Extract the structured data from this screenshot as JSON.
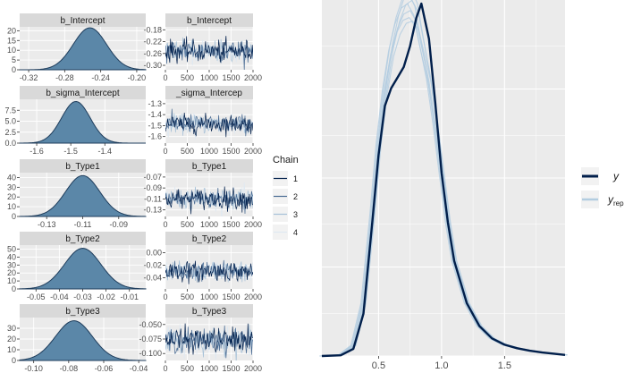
{
  "colors": {
    "panel": "#ebebeb",
    "strip": "#d9d9d9",
    "grid": "#ffffff",
    "density_fill": "#5b87a8",
    "density_line": "#1f3d5c",
    "y_line": "#011f4b",
    "yrep_line": "#b3cde0",
    "tick_text": "#4d4d4d"
  },
  "chart_data": [
    {
      "type": "area",
      "title": "b_Intercept",
      "xlim": [
        -0.33,
        -0.19
      ],
      "ylim": [
        0,
        22
      ],
      "xticks": [
        -0.32,
        -0.28,
        -0.24,
        -0.2
      ],
      "xtick_labels": [
        "-0.32",
        "-0.28",
        "-0.24",
        "-0.20"
      ],
      "yticks": [
        0,
        5,
        10,
        15,
        20
      ],
      "ytick_labels": [
        "0",
        "5",
        "10",
        "15",
        "20"
      ],
      "density": {
        "mean": -0.252,
        "sd": 0.0185,
        "peak": 21.5
      }
    },
    {
      "type": "area",
      "title": "b_sigma_Intercept",
      "xlim": [
        -1.65,
        -1.28
      ],
      "ylim": [
        0,
        10
      ],
      "xticks": [
        -1.6,
        -1.5,
        -1.4
      ],
      "xtick_labels": [
        "-1.6",
        "-1.5",
        "-1.4"
      ],
      "yticks": [
        0,
        2.5,
        5,
        7.5
      ],
      "ytick_labels": [
        "0.0",
        "2.5",
        "5.0",
        "7.5"
      ],
      "density": {
        "mean": -1.485,
        "sd": 0.042,
        "peak": 9.5
      }
    },
    {
      "type": "area",
      "title": "b_Type1",
      "xlim": [
        -0.145,
        -0.075
      ],
      "ylim": [
        0,
        45
      ],
      "xticks": [
        -0.13,
        -0.11,
        -0.09
      ],
      "xtick_labels": [
        "-0.13",
        "-0.11",
        "-0.09"
      ],
      "yticks": [
        0,
        10,
        20,
        30,
        40
      ],
      "ytick_labels": [
        "0",
        "10",
        "20",
        "30",
        "40"
      ],
      "density": {
        "mean": -0.11,
        "sd": 0.0095,
        "peak": 42
      }
    },
    {
      "type": "area",
      "title": "b_Type2",
      "xlim": [
        -0.057,
        -0.003
      ],
      "ylim": [
        0,
        55
      ],
      "xticks": [
        -0.05,
        -0.04,
        -0.03,
        -0.02,
        -0.01
      ],
      "xtick_labels": [
        "-0.05",
        "-0.04",
        "-0.03",
        "-0.02",
        "-0.01"
      ],
      "yticks": [
        0,
        10,
        20,
        30,
        40,
        50
      ],
      "ytick_labels": [
        "0",
        "10",
        "20",
        "30",
        "40",
        "50"
      ],
      "density": {
        "mean": -0.03,
        "sd": 0.0078,
        "peak": 51
      }
    },
    {
      "type": "area",
      "title": "b_Type3",
      "xlim": [
        -0.108,
        -0.036
      ],
      "ylim": [
        0,
        40
      ],
      "xticks": [
        -0.1,
        -0.08,
        -0.06,
        -0.04
      ],
      "xtick_labels": [
        "-0.10",
        "-0.08",
        "-0.06",
        "-0.04"
      ],
      "yticks": [
        0,
        10,
        20,
        30
      ],
      "ytick_labels": [
        "0",
        "10",
        "20",
        "30"
      ],
      "density": {
        "mean": -0.077,
        "sd": 0.0105,
        "peak": 37
      }
    },
    {
      "type": "line",
      "title": "b_Intercept",
      "xlim": [
        0,
        2000
      ],
      "ylim": [
        -0.315,
        -0.17
      ],
      "xticks": [
        0,
        500,
        1000,
        1500,
        2000
      ],
      "xtick_labels": [
        "0",
        "500",
        "1000",
        "1500",
        "2000"
      ],
      "yticks": [
        -0.18,
        -0.22,
        -0.26,
        -0.3
      ],
      "ytick_labels": [
        "-0.18",
        "-0.22",
        "-0.26",
        "-0.30"
      ],
      "trace": {
        "mean": -0.252,
        "sd": 0.0185
      }
    },
    {
      "type": "line",
      "title": "_sigma_Intercep",
      "xlim": [
        0,
        2000
      ],
      "ylim": [
        -1.66,
        -1.26
      ],
      "xticks": [
        0,
        500,
        1000,
        1500,
        2000
      ],
      "xtick_labels": [
        "0",
        "500",
        "1000",
        "1500",
        "2000"
      ],
      "yticks": [
        -1.3,
        -1.4,
        -1.5,
        -1.6
      ],
      "ytick_labels": [
        "-1.3",
        "-1.4",
        "-1.5",
        "-1.6"
      ],
      "trace": {
        "mean": -1.485,
        "sd": 0.042
      }
    },
    {
      "type": "line",
      "title": "b_Type1",
      "xlim": [
        0,
        2000
      ],
      "ylim": [
        -0.142,
        -0.062
      ],
      "xticks": [
        0,
        500,
        1000,
        1500,
        2000
      ],
      "xtick_labels": [
        "0",
        "500",
        "1000",
        "1500",
        "2000"
      ],
      "yticks": [
        -0.07,
        -0.09,
        -0.11,
        -0.13
      ],
      "ytick_labels": [
        "-0.07",
        "-0.09",
        "-0.11",
        "-0.13"
      ],
      "trace": {
        "mean": -0.11,
        "sd": 0.0095
      }
    },
    {
      "type": "line",
      "title": "b_Type2",
      "xlim": [
        0,
        2000
      ],
      "ylim": [
        -0.058,
        0.012
      ],
      "xticks": [
        0,
        500,
        1000,
        1500,
        2000
      ],
      "xtick_labels": [
        "0",
        "500",
        "1000",
        "1500",
        "2000"
      ],
      "yticks": [
        0,
        -0.02,
        -0.04
      ],
      "ytick_labels": [
        "0.00",
        "-0.02",
        "-0.04"
      ],
      "trace": {
        "mean": -0.03,
        "sd": 0.0078
      }
    },
    {
      "type": "line",
      "title": "b_Type3",
      "xlim": [
        0,
        2000
      ],
      "ylim": [
        -0.112,
        -0.038
      ],
      "xticks": [
        0,
        500,
        1000,
        1500,
        2000
      ],
      "xtick_labels": [
        "0",
        "500",
        "1000",
        "1500",
        "2000"
      ],
      "yticks": [
        -0.05,
        -0.075,
        -0.1
      ],
      "ytick_labels": [
        "-0.050",
        "-0.075",
        "-0.100"
      ],
      "trace": {
        "mean": -0.077,
        "sd": 0.0105
      }
    },
    {
      "type": "line",
      "title": "",
      "xlim": [
        0.05,
        1.98
      ],
      "ylim": [
        0,
        1.0
      ],
      "xticks": [
        0.5,
        1.0,
        1.5
      ],
      "xtick_labels": [
        "0.5",
        "1.0",
        "1.5"
      ],
      "grid": true,
      "series": [
        {
          "name": "y",
          "x": [
            0.05,
            0.2,
            0.3,
            0.38,
            0.45,
            0.5,
            0.55,
            0.6,
            0.65,
            0.7,
            0.75,
            0.8,
            0.84,
            0.9,
            0.95,
            1.0,
            1.05,
            1.1,
            1.2,
            1.3,
            1.4,
            1.5,
            1.6,
            1.7,
            1.8,
            1.9,
            1.98
          ],
          "y": [
            0.0,
            0.002,
            0.02,
            0.12,
            0.38,
            0.57,
            0.71,
            0.76,
            0.79,
            0.82,
            0.88,
            0.96,
            1.0,
            0.9,
            0.72,
            0.52,
            0.38,
            0.27,
            0.15,
            0.085,
            0.05,
            0.032,
            0.022,
            0.015,
            0.01,
            0.006,
            0.003
          ]
        },
        {
          "name": "y_rep",
          "x": [
            0.05,
            0.2,
            0.3,
            0.38,
            0.45,
            0.5,
            0.55,
            0.6,
            0.65,
            0.7,
            0.75,
            0.8,
            0.84,
            0.9,
            0.95,
            1.0,
            1.05,
            1.1,
            1.2,
            1.3,
            1.4,
            1.5,
            1.6,
            1.7,
            1.8,
            1.9,
            1.98
          ],
          "y": [
            0.0,
            0.003,
            0.03,
            0.15,
            0.4,
            0.6,
            0.75,
            0.86,
            0.93,
            0.97,
            0.98,
            0.95,
            0.88,
            0.78,
            0.66,
            0.52,
            0.38,
            0.27,
            0.15,
            0.085,
            0.05,
            0.032,
            0.022,
            0.015,
            0.01,
            0.006,
            0.003
          ]
        }
      ]
    }
  ],
  "chain_legend": {
    "title": "Chain",
    "labels": [
      "1",
      "2",
      "3",
      "4"
    ],
    "colors": [
      "#011f4b",
      "#4a6c94",
      "#a6c1d8",
      "#dfe9f2"
    ]
  },
  "ppc_legend": {
    "y_label": "y",
    "yrep_label": "y",
    "yrep_sub": "rep"
  }
}
